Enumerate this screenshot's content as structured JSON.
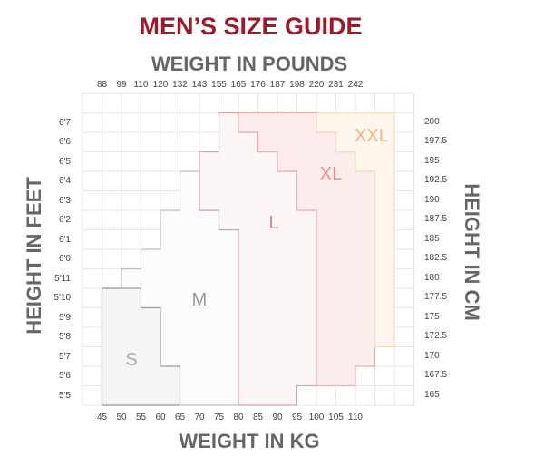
{
  "title": "MEN’S SIZE GUIDE",
  "top_axis_title": "WEIGHT IN POUNDS",
  "bottom_axis_title": "WEIGHT IN KG",
  "left_axis_title": "HEIGHT IN FEET",
  "right_axis_title": "HEIGHT IN CM",
  "pounds": [
    "88",
    "99",
    "110",
    "120",
    "132",
    "143",
    "155",
    "165",
    "176",
    "187",
    "198",
    "220",
    "231",
    "242"
  ],
  "kg": [
    "45",
    "50",
    "55",
    "60",
    "65",
    "70",
    "75",
    "80",
    "85",
    "90",
    "95",
    "100",
    "105",
    "110"
  ],
  "feet": [
    "6'7",
    "6'6",
    "6'5",
    "6'4",
    "6'3",
    "6'2",
    "6'1",
    "6'0",
    "5'11",
    "5'10",
    "5'9",
    "5'8",
    "5'7",
    "5'6",
    "5'5"
  ],
  "cm": [
    "200",
    "197.5",
    "195",
    "192.5",
    "190",
    "187.5",
    "185",
    "182.5",
    "180",
    "177.5",
    "175",
    "172.5",
    "170",
    "167.5",
    "165"
  ],
  "sizes": [
    {
      "label": "XXL",
      "fill": "#fff6ea",
      "stroke": "#f5dcb8",
      "text_color": "#f4b57a"
    },
    {
      "label": "XL",
      "fill": "#fde9e9",
      "stroke": "#eab0b0",
      "text_color": "#ee8c8c"
    },
    {
      "label": "L",
      "fill": "#fdf5f5",
      "stroke": "#d6a3a3",
      "text_color": "#d98a8a"
    },
    {
      "label": "M",
      "fill": "#fcfbfb",
      "stroke": "#bdbdbd",
      "text_color": "#999999"
    },
    {
      "label": "S",
      "fill": "#f3f3f3",
      "stroke": "#9a9a9a",
      "text_color": "#aaaaaa"
    }
  ],
  "colors": {
    "title": "#9b1b2a",
    "axis_title": "#666666",
    "grid": "#e6e6e6"
  }
}
